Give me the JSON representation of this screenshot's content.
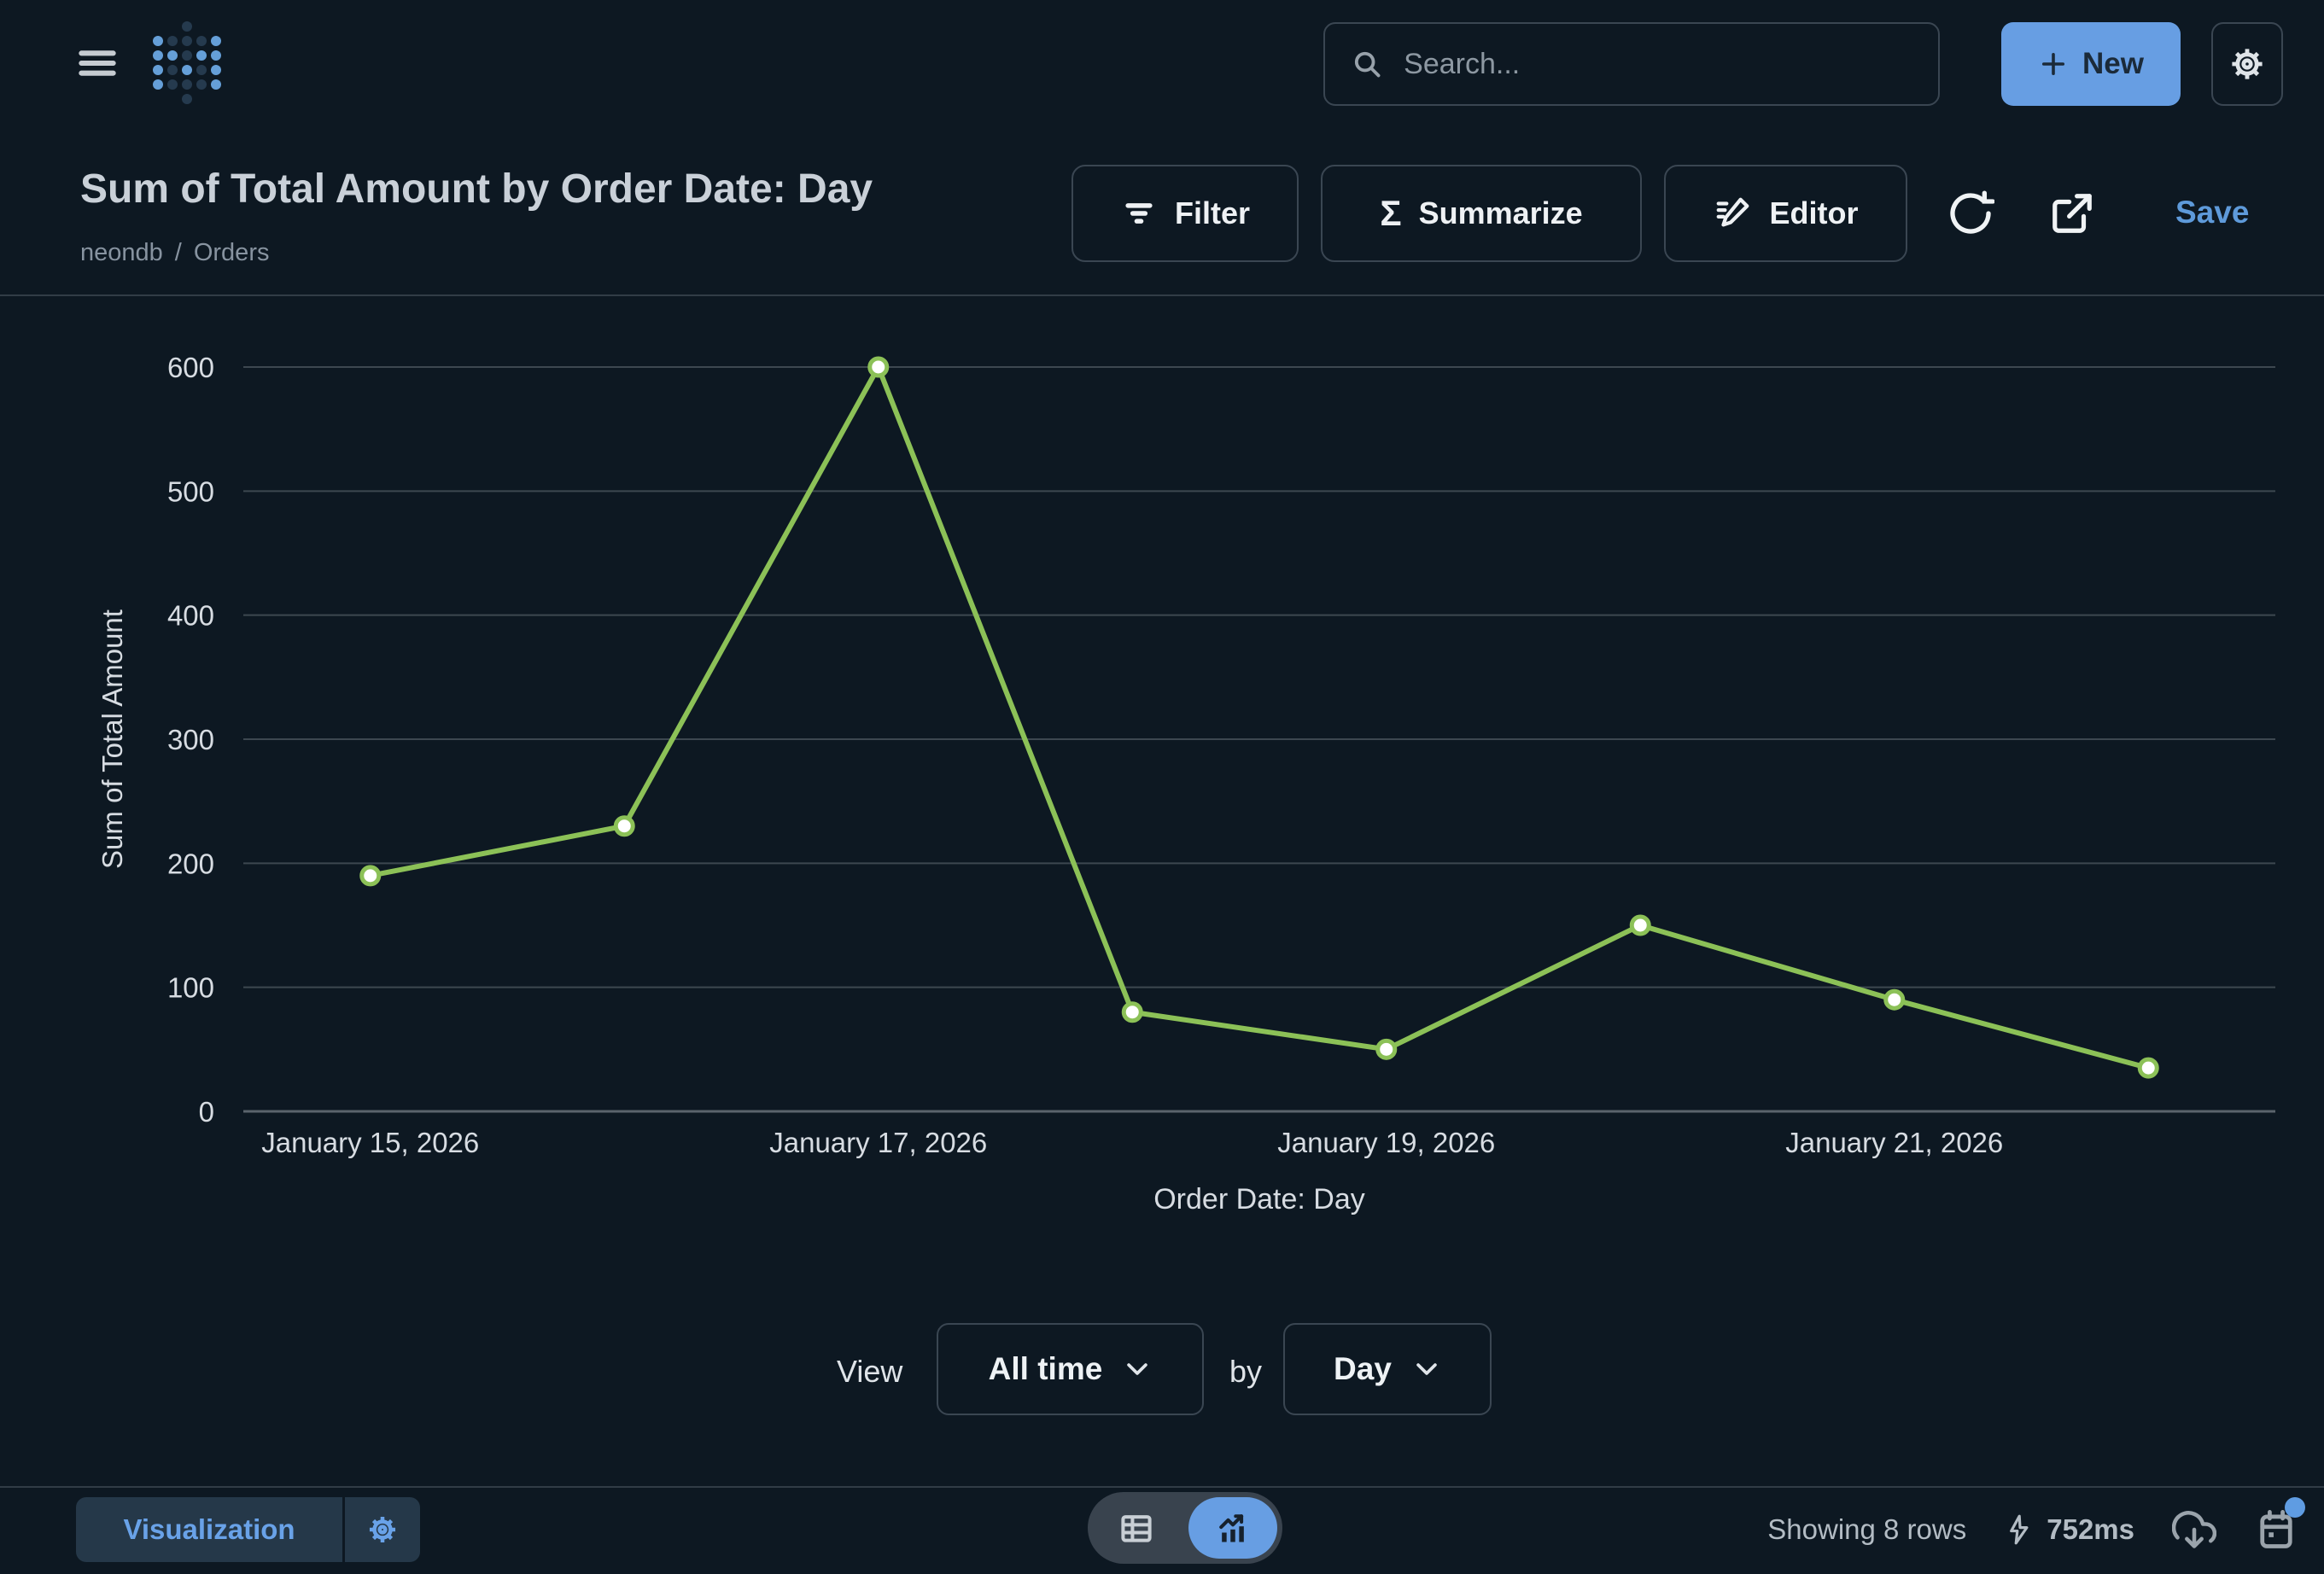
{
  "topbar": {
    "search_placeholder": "Search...",
    "new_label": "New"
  },
  "header": {
    "title": "Sum of Total Amount by Order Date: Day",
    "breadcrumb": {
      "database": "neondb",
      "separator": "/",
      "table": "Orders"
    },
    "actions": {
      "filter": "Filter",
      "summarize": "Summarize",
      "sigma_glyph": "Σ",
      "editor": "Editor",
      "save": "Save"
    }
  },
  "chart_data": {
    "type": "line",
    "title": "Sum of Total Amount by Order Date: Day",
    "x": [
      "January 15, 2026",
      "January 16, 2026",
      "January 17, 2026",
      "January 18, 2026",
      "January 19, 2026",
      "January 20, 2026",
      "January 21, 2026",
      "January 22, 2026"
    ],
    "values": [
      190,
      230,
      600,
      80,
      50,
      150,
      90,
      35
    ],
    "xlabel": "Order Date: Day",
    "ylabel": "Sum of Total Amount",
    "ylim": [
      0,
      600
    ],
    "y_ticks": [
      0,
      100,
      200,
      300,
      400,
      500,
      600
    ],
    "x_tick_indices": [
      0,
      2,
      4,
      6
    ],
    "x_tick_labels": [
      "January 15, 2026",
      "January 17, 2026",
      "January 19, 2026",
      "January 21, 2026"
    ],
    "line_color": "#8cc157",
    "point_fill": "#ffffff",
    "gridline_color": "#3d4750",
    "axis_line_color": "#5a636c",
    "grid": true,
    "legend": "none"
  },
  "view_controls": {
    "view_label": "View",
    "range_value": "All time",
    "by_label": "by",
    "granularity_value": "Day"
  },
  "footer": {
    "visualization_label": "Visualization",
    "row_count": "Showing 8 rows",
    "query_time": "752ms"
  },
  "colors": {
    "background": "#0d1822",
    "accent_blue": "#679ee3",
    "link_blue": "#5e9ada",
    "chart_green": "#8cc157",
    "border": "#3a4652",
    "muted_text": "#8793a0",
    "logo_blue": "#659fd8",
    "logo_dark": "#253a4e"
  },
  "logo_matrix": [
    [
      ".",
      ".",
      "d",
      ".",
      "."
    ],
    [
      "b",
      "d",
      "d",
      "d",
      "b"
    ],
    [
      "b",
      "b",
      "d",
      "b",
      "b"
    ],
    [
      "b",
      "d",
      "b",
      "d",
      "b"
    ],
    [
      "b",
      "d",
      "d",
      "d",
      "b"
    ],
    [
      ".",
      ".",
      "d",
      ".",
      "."
    ]
  ]
}
